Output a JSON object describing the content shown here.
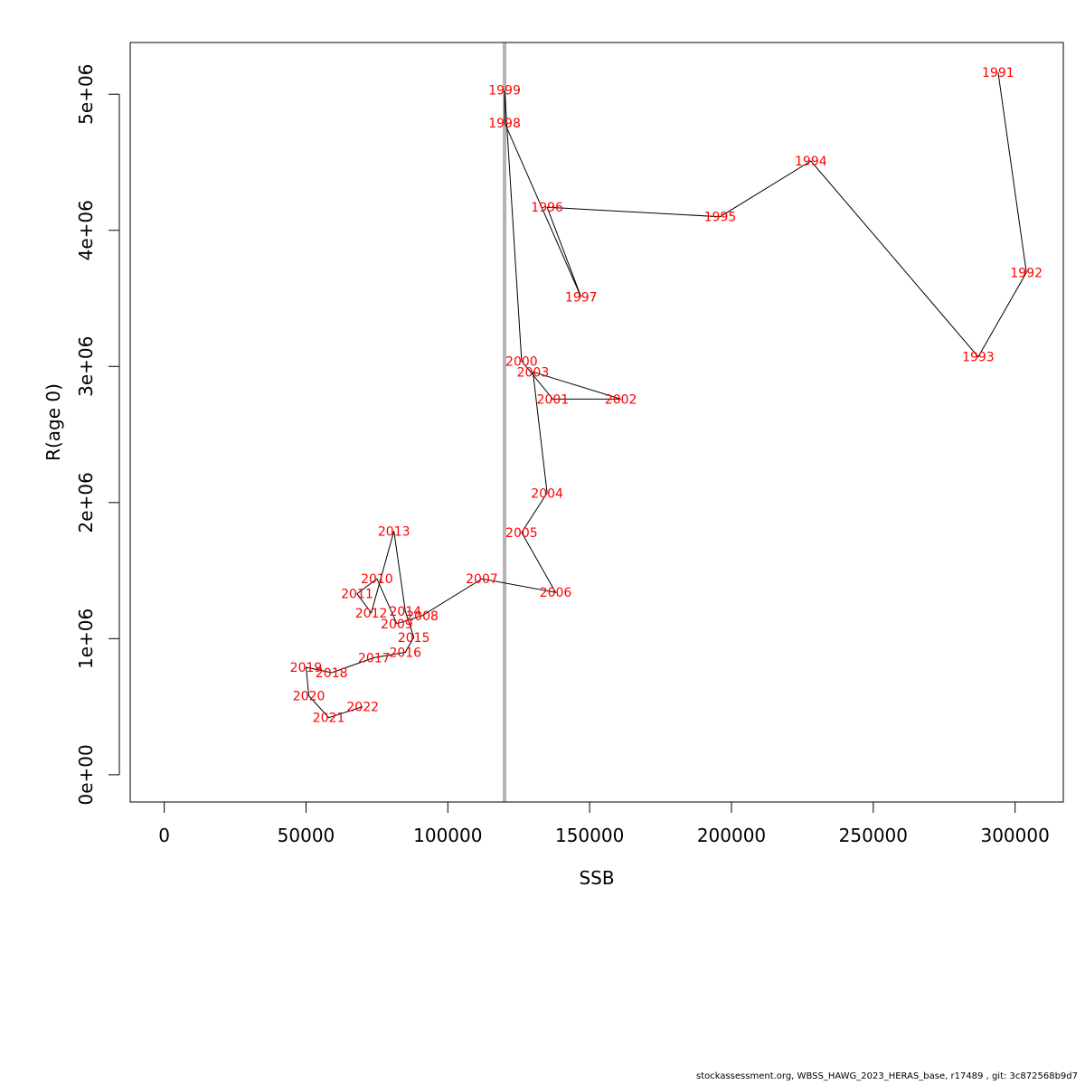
{
  "chart_data": {
    "type": "scatter",
    "title": "",
    "xlabel": "SSB",
    "ylabel": "R(age 0)",
    "xlim": [
      -12000,
      317000
    ],
    "ylim": [
      -200000,
      5380000
    ],
    "x_ticks": [
      0,
      50000,
      100000,
      150000,
      200000,
      250000,
      300000
    ],
    "x_tick_labels": [
      "0",
      "50000",
      "100000",
      "150000",
      "200000",
      "250000",
      "300000"
    ],
    "y_ticks": [
      0,
      1000000,
      2000000,
      3000000,
      4000000,
      5000000
    ],
    "y_tick_labels": [
      "0e+00",
      "1e+06",
      "2e+06",
      "3e+06",
      "4e+06",
      "5e+06"
    ],
    "reference_line": {
      "axis": "x",
      "value": 120000,
      "color": "#b3b3b3"
    },
    "line_color": "#000000",
    "label_color": "#ff0000",
    "points": [
      {
        "year": "1991",
        "ssb": 294000,
        "r": 5160000
      },
      {
        "year": "1992",
        "ssb": 304000,
        "r": 3690000
      },
      {
        "year": "1993",
        "ssb": 287000,
        "r": 3070000
      },
      {
        "year": "1994",
        "ssb": 228000,
        "r": 4510000
      },
      {
        "year": "1995",
        "ssb": 196000,
        "r": 4100000
      },
      {
        "year": "1996",
        "ssb": 135000,
        "r": 4170000
      },
      {
        "year": "1997",
        "ssb": 147000,
        "r": 3510000
      },
      {
        "year": "1998",
        "ssb": 120000,
        "r": 4790000
      },
      {
        "year": "1999",
        "ssb": 120000,
        "r": 5030000
      },
      {
        "year": "2000",
        "ssb": 126000,
        "r": 3040000
      },
      {
        "year": "2001",
        "ssb": 137000,
        "r": 2760000
      },
      {
        "year": "2002",
        "ssb": 161000,
        "r": 2760000
      },
      {
        "year": "2003",
        "ssb": 130000,
        "r": 2960000
      },
      {
        "year": "2004",
        "ssb": 135000,
        "r": 2070000
      },
      {
        "year": "2005",
        "ssb": 126000,
        "r": 1780000
      },
      {
        "year": "2006",
        "ssb": 138000,
        "r": 1340000
      },
      {
        "year": "2007",
        "ssb": 112000,
        "r": 1440000
      },
      {
        "year": "2008",
        "ssb": 91000,
        "r": 1170000
      },
      {
        "year": "2009",
        "ssb": 82000,
        "r": 1110000
      },
      {
        "year": "2010",
        "ssb": 75000,
        "r": 1440000
      },
      {
        "year": "2011",
        "ssb": 68000,
        "r": 1330000
      },
      {
        "year": "2012",
        "ssb": 73000,
        "r": 1190000
      },
      {
        "year": "2013",
        "ssb": 81000,
        "r": 1790000
      },
      {
        "year": "2014",
        "ssb": 85000,
        "r": 1200000
      },
      {
        "year": "2015",
        "ssb": 88000,
        "r": 1010000
      },
      {
        "year": "2016",
        "ssb": 85000,
        "r": 900000
      },
      {
        "year": "2017",
        "ssb": 74000,
        "r": 860000
      },
      {
        "year": "2018",
        "ssb": 59000,
        "r": 750000
      },
      {
        "year": "2019",
        "ssb": 50000,
        "r": 790000
      },
      {
        "year": "2020",
        "ssb": 51000,
        "r": 580000
      },
      {
        "year": "2021",
        "ssb": 58000,
        "r": 420000
      },
      {
        "year": "2022",
        "ssb": 70000,
        "r": 500000
      }
    ]
  },
  "footer": "stockassessment.org, WBSS_HAWG_2023_HERAS_base, r17489 , git: 3c872568b9d7"
}
